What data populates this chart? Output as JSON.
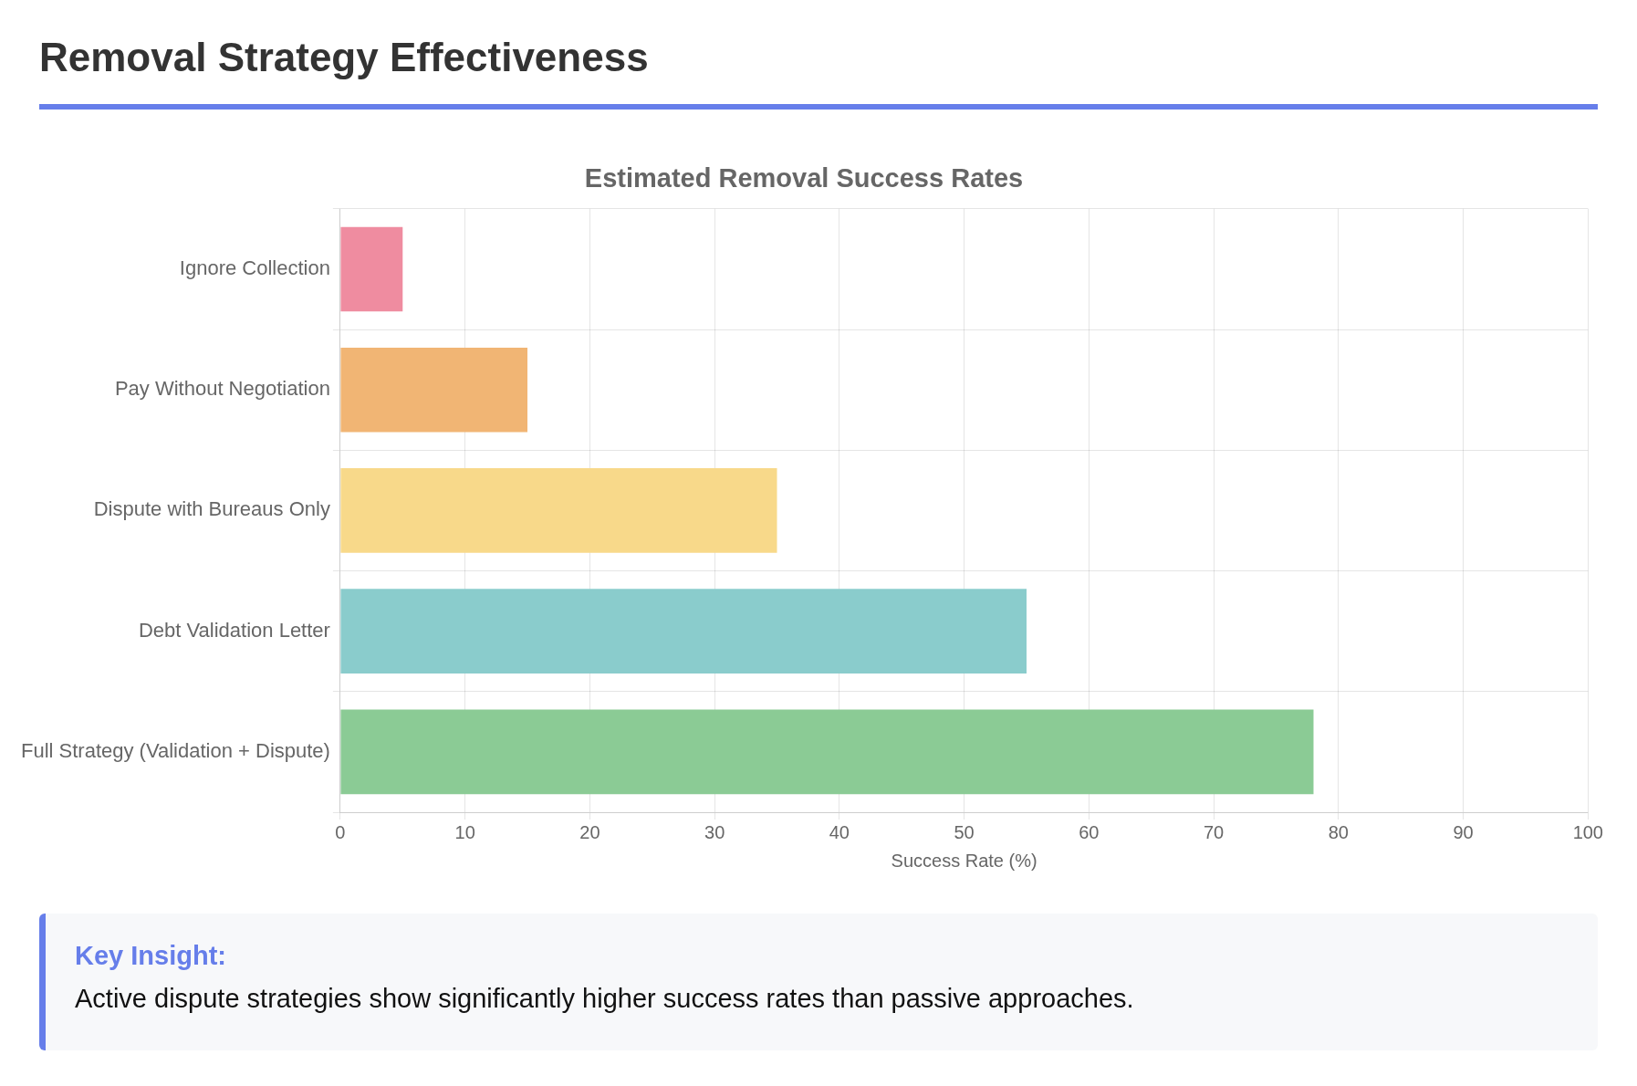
{
  "chart_data": {
    "type": "bar",
    "orientation": "horizontal",
    "title": "Removal Strategy Effectiveness",
    "subtitle": "Estimated Removal Success Rates",
    "xlabel": "Success Rate (%)",
    "categories": [
      "Ignore Collection",
      "Pay Without Negotiation",
      "Dispute with Bureaus Only",
      "Debt Validation Letter",
      "Full Strategy (Validation + Dispute)"
    ],
    "values": [
      5,
      15,
      35,
      55,
      78
    ],
    "colors": [
      "#ef8ca0",
      "#f1b574",
      "#f8d98a",
      "#8acccc",
      "#8bcb95"
    ],
    "xlim": [
      0,
      100
    ],
    "xticks": [
      0,
      10,
      20,
      30,
      40,
      50,
      60,
      70,
      80,
      90,
      100
    ],
    "grid": true,
    "legend": false,
    "annotations": [
      "Key Insight:",
      "Active dispute strategies show significantly higher success rates than passive approaches."
    ]
  }
}
